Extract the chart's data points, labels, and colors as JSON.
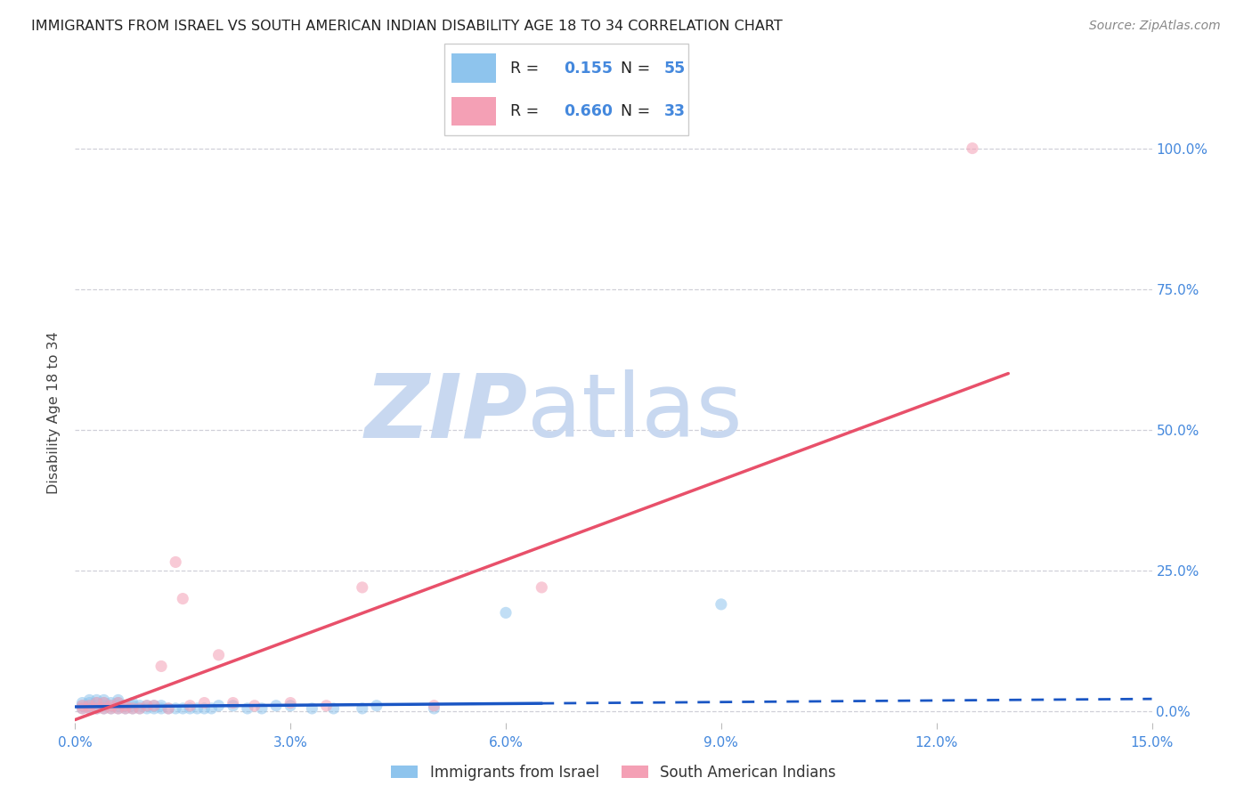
{
  "title": "IMMIGRANTS FROM ISRAEL VS SOUTH AMERICAN INDIAN DISABILITY AGE 18 TO 34 CORRELATION CHART",
  "source": "Source: ZipAtlas.com",
  "ylabel": "Disability Age 18 to 34",
  "xlim": [
    0.0,
    0.15
  ],
  "ylim": [
    -0.02,
    1.08
  ],
  "ytick_values": [
    0.0,
    0.25,
    0.5,
    0.75,
    1.0
  ],
  "right_ytick_labels": [
    "0.0%",
    "25.0%",
    "50.0%",
    "75.0%",
    "100.0%"
  ],
  "xtick_positions": [
    0.0,
    0.03,
    0.06,
    0.09,
    0.12,
    0.15
  ],
  "xtick_labels": [
    "0.0%",
    "3.0%",
    "6.0%",
    "9.0%",
    "12.0%",
    "15.0%"
  ],
  "legend_label1": "Immigrants from Israel",
  "legend_label2": "South American Indians",
  "R1": "0.155",
  "N1": "55",
  "R2": "0.660",
  "N2": "33",
  "color_blue": "#8ec4ed",
  "color_pink": "#f4a0b5",
  "color_blue_line": "#1a56c4",
  "color_pink_line": "#e8506a",
  "color_grid": "#d0d0d8",
  "color_title": "#222222",
  "color_source": "#888888",
  "color_axis_blue": "#4488dd",
  "watermark_zip": "ZIP",
  "watermark_atlas": "atlas",
  "watermark_color_zip": "#c8d8f0",
  "watermark_color_atlas": "#c8d8f0",
  "blue_line_x0": 0.0,
  "blue_line_x1": 0.15,
  "blue_line_y0": 0.008,
  "blue_line_y1": 0.022,
  "blue_line_dashed_x0": 0.065,
  "blue_line_dashed_x1": 0.15,
  "blue_line_dashed_y0": 0.014,
  "blue_line_dashed_y1": 0.022,
  "pink_line_x0": 0.0,
  "pink_line_x1": 0.13,
  "pink_line_y0": -0.015,
  "pink_line_y1": 0.6,
  "blue_scatter_x": [
    0.001,
    0.001,
    0.001,
    0.002,
    0.002,
    0.002,
    0.002,
    0.003,
    0.003,
    0.003,
    0.003,
    0.004,
    0.004,
    0.004,
    0.004,
    0.005,
    0.005,
    0.005,
    0.006,
    0.006,
    0.006,
    0.006,
    0.007,
    0.007,
    0.008,
    0.008,
    0.008,
    0.009,
    0.009,
    0.01,
    0.01,
    0.011,
    0.011,
    0.012,
    0.012,
    0.013,
    0.014,
    0.015,
    0.016,
    0.017,
    0.018,
    0.019,
    0.02,
    0.022,
    0.024,
    0.026,
    0.028,
    0.03,
    0.033,
    0.036,
    0.04,
    0.042,
    0.05,
    0.06,
    0.09
  ],
  "blue_scatter_y": [
    0.005,
    0.01,
    0.015,
    0.005,
    0.01,
    0.015,
    0.02,
    0.005,
    0.01,
    0.015,
    0.02,
    0.005,
    0.01,
    0.015,
    0.02,
    0.005,
    0.01,
    0.015,
    0.005,
    0.01,
    0.015,
    0.02,
    0.005,
    0.01,
    0.005,
    0.01,
    0.015,
    0.005,
    0.01,
    0.005,
    0.01,
    0.005,
    0.01,
    0.005,
    0.01,
    0.005,
    0.005,
    0.005,
    0.005,
    0.005,
    0.005,
    0.005,
    0.01,
    0.01,
    0.005,
    0.005,
    0.01,
    0.01,
    0.005,
    0.005,
    0.005,
    0.01,
    0.005,
    0.175,
    0.19
  ],
  "pink_scatter_x": [
    0.001,
    0.001,
    0.002,
    0.002,
    0.003,
    0.003,
    0.004,
    0.004,
    0.005,
    0.005,
    0.006,
    0.006,
    0.007,
    0.007,
    0.008,
    0.009,
    0.01,
    0.011,
    0.012,
    0.013,
    0.014,
    0.015,
    0.016,
    0.018,
    0.02,
    0.022,
    0.025,
    0.03,
    0.035,
    0.04,
    0.05,
    0.065,
    0.125
  ],
  "pink_scatter_y": [
    0.005,
    0.01,
    0.005,
    0.01,
    0.005,
    0.015,
    0.005,
    0.015,
    0.005,
    0.01,
    0.005,
    0.015,
    0.005,
    0.01,
    0.005,
    0.005,
    0.01,
    0.01,
    0.08,
    0.005,
    0.265,
    0.2,
    0.01,
    0.015,
    0.1,
    0.015,
    0.01,
    0.015,
    0.01,
    0.22,
    0.01,
    0.22,
    1.0
  ],
  "marker_size": 90,
  "marker_alpha": 0.55
}
